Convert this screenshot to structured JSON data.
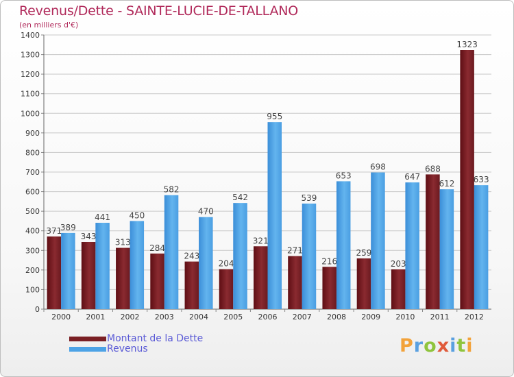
{
  "title": "Revenus/Dette - SAINTE-LUCIE-DE-TALLANO",
  "subtitle": "(en milliers d'€)",
  "colors": {
    "title": "#b0295a",
    "dette": "#7a1f24",
    "revenus": "#4da3e6",
    "legend_text": "#5a5ad6",
    "grid": "#c8c8c8"
  },
  "legend": {
    "dette": "Montant de la Dette",
    "revenus": "Revenus"
  },
  "logo": {
    "letters": [
      "P",
      "r",
      "o",
      "x",
      "i",
      "t",
      "i"
    ],
    "colors": [
      "#f2a23a",
      "#5aa0e0",
      "#8fc43d",
      "#e05a3a",
      "#5aa0e0",
      "#8fc43d",
      "#f2a23a"
    ]
  },
  "chart_data": {
    "type": "bar",
    "categories": [
      "2000",
      "2001",
      "2002",
      "2003",
      "2004",
      "2005",
      "2006",
      "2007",
      "2008",
      "2009",
      "2010",
      "2011",
      "2012"
    ],
    "series": [
      {
        "name": "Montant de la Dette",
        "values": [
          371,
          343,
          313,
          284,
          243,
          204,
          321,
          271,
          216,
          259,
          203,
          688,
          1323
        ]
      },
      {
        "name": "Revenus",
        "values": [
          389,
          441,
          450,
          582,
          470,
          542,
          955,
          539,
          653,
          698,
          647,
          612,
          633
        ]
      }
    ],
    "title": "Revenus/Dette - SAINTE-LUCIE-DE-TALLANO",
    "ylabel": "(en milliers d'€)",
    "xlabel": "",
    "ylim": [
      0,
      1400
    ],
    "yticks": [
      0,
      100,
      200,
      300,
      400,
      500,
      600,
      700,
      800,
      900,
      1000,
      1100,
      1200,
      1300,
      1400
    ],
    "grid": true,
    "legend_position": "bottom-left"
  }
}
